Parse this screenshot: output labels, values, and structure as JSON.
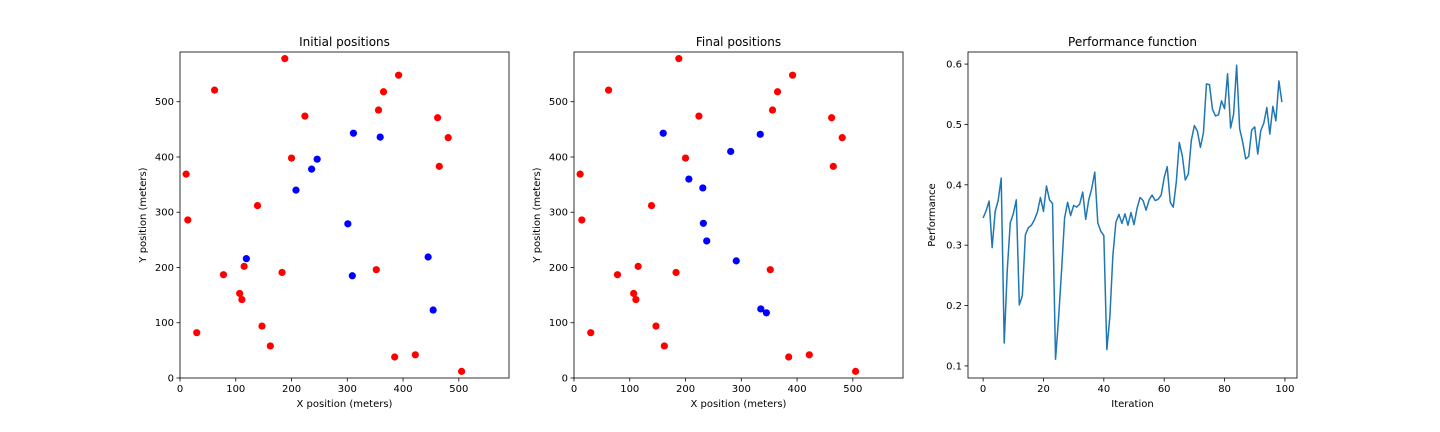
{
  "chart_data": [
    {
      "type": "scatter",
      "title": "Initial positions",
      "xlabel": "X position (meters)",
      "ylabel": "Y position (meters)",
      "xlim": [
        0,
        590
      ],
      "ylim": [
        0,
        590
      ],
      "xticks": [
        0,
        100,
        200,
        300,
        400,
        500
      ],
      "yticks": [
        0,
        100,
        200,
        300,
        400,
        500
      ],
      "grid": false,
      "series": [
        {
          "color": "#ff0000",
          "points": [
            [
              188,
              578
            ],
            [
              62,
              521
            ],
            [
              392,
              548
            ],
            [
              365,
              518
            ],
            [
              224,
              474
            ],
            [
              356,
              485
            ],
            [
              462,
              471
            ],
            [
              481,
              435
            ],
            [
              200,
              398
            ],
            [
              465,
              383
            ],
            [
              11,
              369
            ],
            [
              14,
              286
            ],
            [
              139,
              312
            ],
            [
              115,
              202
            ],
            [
              78,
              187
            ],
            [
              183,
              191
            ],
            [
              352,
              196
            ],
            [
              107,
              153
            ],
            [
              111,
              142
            ],
            [
              147,
              94
            ],
            [
              30,
              82
            ],
            [
              162,
              58
            ],
            [
              385,
              38
            ],
            [
              422,
              42
            ],
            [
              505,
              12
            ]
          ]
        },
        {
          "color": "#0000ff",
          "points": [
            [
              311,
              443
            ],
            [
              359,
              436
            ],
            [
              246,
              396
            ],
            [
              236,
              378
            ],
            [
              208,
              340
            ],
            [
              301,
              279
            ],
            [
              119,
              216
            ],
            [
              445,
              219
            ],
            [
              309,
              185
            ],
            [
              454,
              123
            ]
          ]
        }
      ]
    },
    {
      "type": "scatter",
      "title": "Final positions",
      "xlabel": "X position (meters)",
      "ylabel": "Y position (meters)",
      "xlim": [
        0,
        590
      ],
      "ylim": [
        0,
        590
      ],
      "xticks": [
        0,
        100,
        200,
        300,
        400,
        500
      ],
      "yticks": [
        0,
        100,
        200,
        300,
        400,
        500
      ],
      "grid": false,
      "series": [
        {
          "color": "#ff0000",
          "points": [
            [
              188,
              578
            ],
            [
              62,
              521
            ],
            [
              392,
              548
            ],
            [
              365,
              518
            ],
            [
              224,
              474
            ],
            [
              356,
              485
            ],
            [
              462,
              471
            ],
            [
              481,
              435
            ],
            [
              200,
              398
            ],
            [
              465,
              383
            ],
            [
              11,
              369
            ],
            [
              14,
              286
            ],
            [
              139,
              312
            ],
            [
              115,
              202
            ],
            [
              78,
              187
            ],
            [
              183,
              191
            ],
            [
              352,
              196
            ],
            [
              107,
              153
            ],
            [
              111,
              142
            ],
            [
              147,
              94
            ],
            [
              30,
              82
            ],
            [
              162,
              58
            ],
            [
              385,
              38
            ],
            [
              422,
              42
            ],
            [
              505,
              12
            ]
          ]
        },
        {
          "color": "#0000ff",
          "points": [
            [
              160,
              443
            ],
            [
              334,
              441
            ],
            [
              281,
              410
            ],
            [
              206,
              360
            ],
            [
              231,
              344
            ],
            [
              232,
              280
            ],
            [
              238,
              248
            ],
            [
              291,
              212
            ],
            [
              335,
              125
            ],
            [
              345,
              118
            ]
          ]
        }
      ]
    },
    {
      "type": "line",
      "title": "Performance function",
      "xlabel": "Iteration",
      "ylabel": "Performance",
      "xlim": [
        -5,
        104
      ],
      "ylim": [
        0.08,
        0.62
      ],
      "xticks": [
        0,
        20,
        40,
        60,
        80,
        100
      ],
      "yticks": [
        0.1,
        0.2,
        0.3,
        0.4,
        0.5,
        0.6
      ],
      "grid": false,
      "series": [
        {
          "color": "#1f77b4",
          "x": [
            0,
            1,
            2,
            3,
            4,
            5,
            6,
            7,
            8,
            9,
            10,
            11,
            12,
            13,
            14,
            15,
            16,
            17,
            18,
            19,
            20,
            21,
            22,
            23,
            24,
            25,
            26,
            27,
            28,
            29,
            30,
            31,
            32,
            33,
            34,
            35,
            36,
            37,
            38,
            39,
            40,
            41,
            42,
            43,
            44,
            45,
            46,
            47,
            48,
            49,
            50,
            51,
            52,
            53,
            54,
            55,
            56,
            57,
            58,
            59,
            60,
            61,
            62,
            63,
            64,
            65,
            66,
            67,
            68,
            69,
            70,
            71,
            72,
            73,
            74,
            75,
            76,
            77,
            78,
            79,
            80,
            81,
            82,
            83,
            84,
            85,
            86,
            87,
            88,
            89,
            90,
            91,
            92,
            93,
            94,
            95,
            96,
            97,
            98,
            99
          ],
          "y": [
            0.345,
            0.357,
            0.373,
            0.296,
            0.356,
            0.374,
            0.411,
            0.138,
            0.258,
            0.337,
            0.352,
            0.375,
            0.201,
            0.216,
            0.317,
            0.329,
            0.333,
            0.342,
            0.355,
            0.379,
            0.356,
            0.398,
            0.375,
            0.369,
            0.111,
            0.178,
            0.258,
            0.345,
            0.371,
            0.349,
            0.366,
            0.363,
            0.368,
            0.388,
            0.343,
            0.375,
            0.394,
            0.421,
            0.337,
            0.323,
            0.316,
            0.127,
            0.181,
            0.283,
            0.338,
            0.351,
            0.336,
            0.352,
            0.333,
            0.354,
            0.334,
            0.361,
            0.379,
            0.374,
            0.358,
            0.375,
            0.383,
            0.374,
            0.376,
            0.383,
            0.412,
            0.43,
            0.371,
            0.363,
            0.404,
            0.47,
            0.448,
            0.408,
            0.418,
            0.474,
            0.498,
            0.489,
            0.462,
            0.486,
            0.567,
            0.566,
            0.525,
            0.514,
            0.516,
            0.539,
            0.526,
            0.584,
            0.494,
            0.517,
            0.598,
            0.493,
            0.471,
            0.443,
            0.447,
            0.491,
            0.496,
            0.451,
            0.49,
            0.502,
            0.528,
            0.484,
            0.53,
            0.506,
            0.572,
            0.537
          ]
        }
      ]
    }
  ]
}
